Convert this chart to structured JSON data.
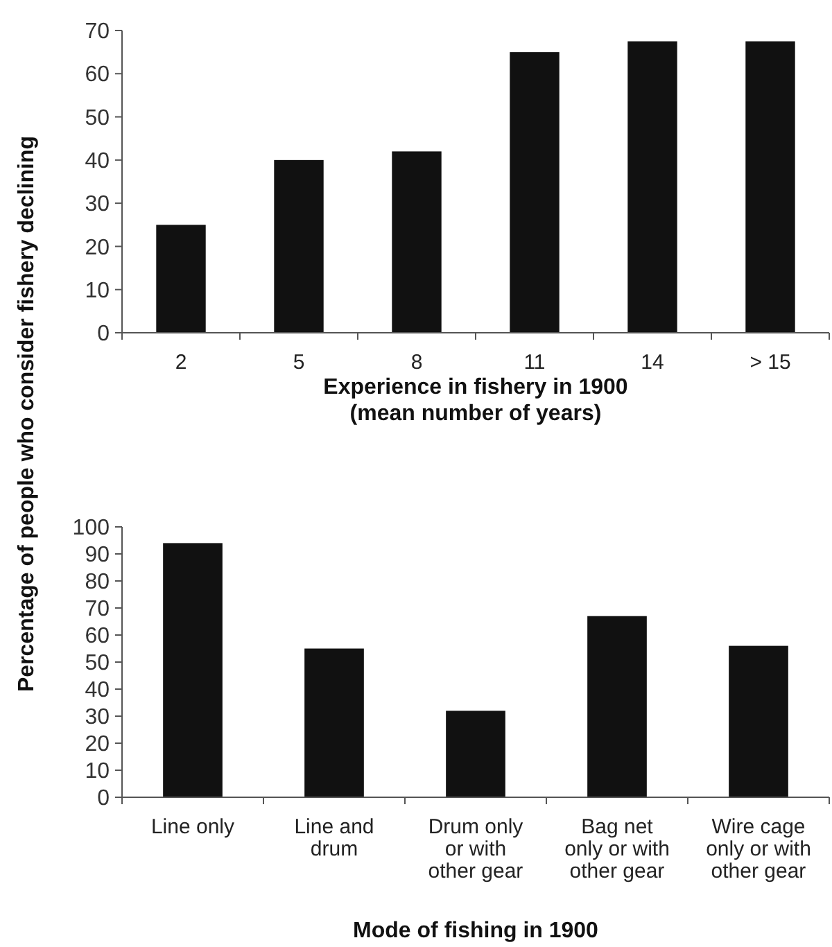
{
  "chart_data": [
    {
      "type": "bar",
      "ylabel": "Percentage of people who consider fishery declining",
      "xlabel": "Experience in fishery in 1900\n(mean number of years)",
      "categories": [
        "2",
        "5",
        "8",
        "11",
        "14",
        "> 15"
      ],
      "values": [
        25,
        40,
        42,
        65,
        67.5,
        67.5
      ],
      "color": "#111111",
      "ylim": [
        0,
        70
      ],
      "yticks": [
        0,
        10,
        20,
        30,
        40,
        50,
        60,
        70
      ],
      "grid": false
    },
    {
      "type": "bar",
      "xlabel": "Mode of fishing in 1900",
      "categories": [
        "Line only",
        "Line and\ndrum",
        "Drum only\nor with\nother gear",
        "Bag net\nonly or with\nother gear",
        "Wire cage\nonly or with\nother gear"
      ],
      "values": [
        94,
        55,
        32,
        67,
        56
      ],
      "color": "#111111",
      "ylim": [
        0,
        100
      ],
      "yticks": [
        0,
        10,
        20,
        30,
        40,
        50,
        60,
        70,
        80,
        90,
        100
      ],
      "grid": false
    }
  ]
}
